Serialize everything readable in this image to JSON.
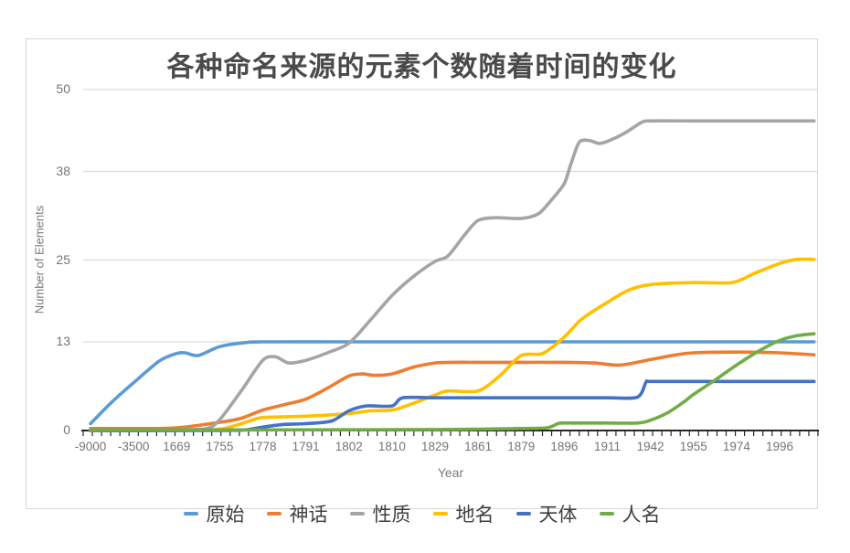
{
  "chart_data": {
    "type": "line",
    "title": "各种命名来源的元素个数随着时间的变化",
    "xlabel": "Year",
    "ylabel": "Number of Elements",
    "ylim": [
      0,
      50
    ],
    "y_ticks": [
      0,
      13,
      25,
      38,
      50
    ],
    "x_tick_labels": [
      "-9000",
      "-3500",
      "1669",
      "1755",
      "1778",
      "1791",
      "1802",
      "1810",
      "1829",
      "1861",
      "1879",
      "1896",
      "1911",
      "1942",
      "1955",
      "1974",
      "1996"
    ],
    "x_scale_note": "categorical axis; series points given as [tick_index 0-16.8, value]",
    "grid": true,
    "legend_position": "bottom",
    "style": {
      "grid_color": "#d9d9d9",
      "axis_color": "#262626",
      "tick_text_color": "#757575",
      "title_color": "#4a4a4a",
      "border_color": "#d9d9d9",
      "background": "#ffffff"
    },
    "series": [
      {
        "name": "原始",
        "color": "#5B9BD5",
        "points": [
          [
            0,
            1
          ],
          [
            0.5,
            4.2
          ],
          [
            1,
            7
          ],
          [
            1.6,
            10.2
          ],
          [
            2,
            11.3
          ],
          [
            2.2,
            11.4
          ],
          [
            2.5,
            11.0
          ],
          [
            3,
            12.3
          ],
          [
            3.6,
            12.9
          ],
          [
            4,
            13
          ],
          [
            6,
            13
          ],
          [
            8,
            13
          ],
          [
            10,
            13
          ],
          [
            12,
            13
          ],
          [
            14,
            13
          ],
          [
            16,
            13
          ],
          [
            16.8,
            13
          ]
        ]
      },
      {
        "name": "神话",
        "color": "#ED7D31",
        "points": [
          [
            0,
            0.3
          ],
          [
            1,
            0.3
          ],
          [
            2,
            0.4
          ],
          [
            3,
            1.2
          ],
          [
            3.5,
            1.8
          ],
          [
            4,
            3
          ],
          [
            4.5,
            3.8
          ],
          [
            5,
            4.6
          ],
          [
            5.5,
            6.2
          ],
          [
            6,
            8
          ],
          [
            6.3,
            8.3
          ],
          [
            6.6,
            8.1
          ],
          [
            7,
            8.3
          ],
          [
            7.5,
            9.3
          ],
          [
            8,
            9.9
          ],
          [
            8.5,
            10
          ],
          [
            9,
            10
          ],
          [
            10,
            10
          ],
          [
            11,
            10
          ],
          [
            11.7,
            9.9
          ],
          [
            12.3,
            9.6
          ],
          [
            13,
            10.4
          ],
          [
            13.6,
            11.1
          ],
          [
            14,
            11.4
          ],
          [
            15,
            11.5
          ],
          [
            16,
            11.4
          ],
          [
            16.8,
            11.1
          ]
        ]
      },
      {
        "name": "性质",
        "color": "#A5A5A5",
        "points": [
          [
            0,
            0
          ],
          [
            1,
            0
          ],
          [
            2,
            0.1
          ],
          [
            2.7,
            0.3
          ],
          [
            3,
            1.6
          ],
          [
            3.5,
            5.8
          ],
          [
            4,
            10.3
          ],
          [
            4.3,
            10.8
          ],
          [
            4.6,
            9.9
          ],
          [
            5,
            10.3
          ],
          [
            5.5,
            11.4
          ],
          [
            6,
            12.8
          ],
          [
            6.5,
            16.2
          ],
          [
            7,
            19.8
          ],
          [
            7.5,
            22.6
          ],
          [
            8,
            24.8
          ],
          [
            8.3,
            25.6
          ],
          [
            8.7,
            28.8
          ],
          [
            9,
            30.8
          ],
          [
            9.4,
            31.2
          ],
          [
            10,
            31.1
          ],
          [
            10.4,
            31.8
          ],
          [
            10.7,
            33.8
          ],
          [
            11,
            36.2
          ],
          [
            11.15,
            39
          ],
          [
            11.35,
            42.3
          ],
          [
            11.6,
            42.5
          ],
          [
            11.8,
            42.1
          ],
          [
            12,
            42.4
          ],
          [
            12.4,
            43.6
          ],
          [
            12.8,
            45.2
          ],
          [
            13,
            45.4
          ],
          [
            14,
            45.4
          ],
          [
            15,
            45.4
          ],
          [
            16,
            45.4
          ],
          [
            16.8,
            45.4
          ]
        ]
      },
      {
        "name": "地名",
        "color": "#FFC000",
        "points": [
          [
            0,
            0
          ],
          [
            2,
            0
          ],
          [
            3,
            0.2
          ],
          [
            3.6,
            1.2
          ],
          [
            4,
            1.9
          ],
          [
            5,
            2.1
          ],
          [
            6,
            2.5
          ],
          [
            6.5,
            2.9
          ],
          [
            7,
            3
          ],
          [
            7.5,
            4
          ],
          [
            8,
            5.2
          ],
          [
            8.3,
            5.8
          ],
          [
            9,
            5.8
          ],
          [
            9.5,
            8
          ],
          [
            10,
            11
          ],
          [
            10.5,
            11.3
          ],
          [
            11,
            13.7
          ],
          [
            11.4,
            16.3
          ],
          [
            12,
            18.8
          ],
          [
            12.5,
            20.6
          ],
          [
            13,
            21.4
          ],
          [
            14,
            21.7
          ],
          [
            14.9,
            21.7
          ],
          [
            15.4,
            23
          ],
          [
            16,
            24.5
          ],
          [
            16.4,
            25.1
          ],
          [
            16.8,
            25.1
          ]
        ]
      },
      {
        "name": "天体",
        "color": "#4472C4",
        "points": [
          [
            0,
            0
          ],
          [
            3,
            0
          ],
          [
            3.6,
            0.1
          ],
          [
            4,
            0.5
          ],
          [
            4.5,
            0.9
          ],
          [
            5,
            1
          ],
          [
            5.6,
            1.4
          ],
          [
            6,
            2.9
          ],
          [
            6.4,
            3.6
          ],
          [
            7,
            3.6
          ],
          [
            7.25,
            4.8
          ],
          [
            8,
            4.8
          ],
          [
            9,
            4.8
          ],
          [
            10,
            4.8
          ],
          [
            11,
            4.8
          ],
          [
            12,
            4.8
          ],
          [
            12.7,
            4.9
          ],
          [
            12.9,
            7.1
          ],
          [
            13,
            7.2
          ],
          [
            14,
            7.2
          ],
          [
            15,
            7.2
          ],
          [
            16,
            7.2
          ],
          [
            16.8,
            7.2
          ]
        ]
      },
      {
        "name": "人名",
        "color": "#70AD47",
        "points": [
          [
            0,
            0.1
          ],
          [
            4,
            0.1
          ],
          [
            8,
            0.15
          ],
          [
            9,
            0.2
          ],
          [
            10,
            0.3
          ],
          [
            10.6,
            0.4
          ],
          [
            10.85,
            1
          ],
          [
            11,
            1.1
          ],
          [
            12,
            1.1
          ],
          [
            12.7,
            1.1
          ],
          [
            13,
            1.5
          ],
          [
            13.4,
            2.6
          ],
          [
            13.8,
            4.3
          ],
          [
            14,
            5.3
          ],
          [
            14.5,
            7.4
          ],
          [
            15,
            9.6
          ],
          [
            15.5,
            11.6
          ],
          [
            16,
            13.2
          ],
          [
            16.4,
            13.9
          ],
          [
            16.8,
            14.2
          ]
        ]
      }
    ]
  }
}
